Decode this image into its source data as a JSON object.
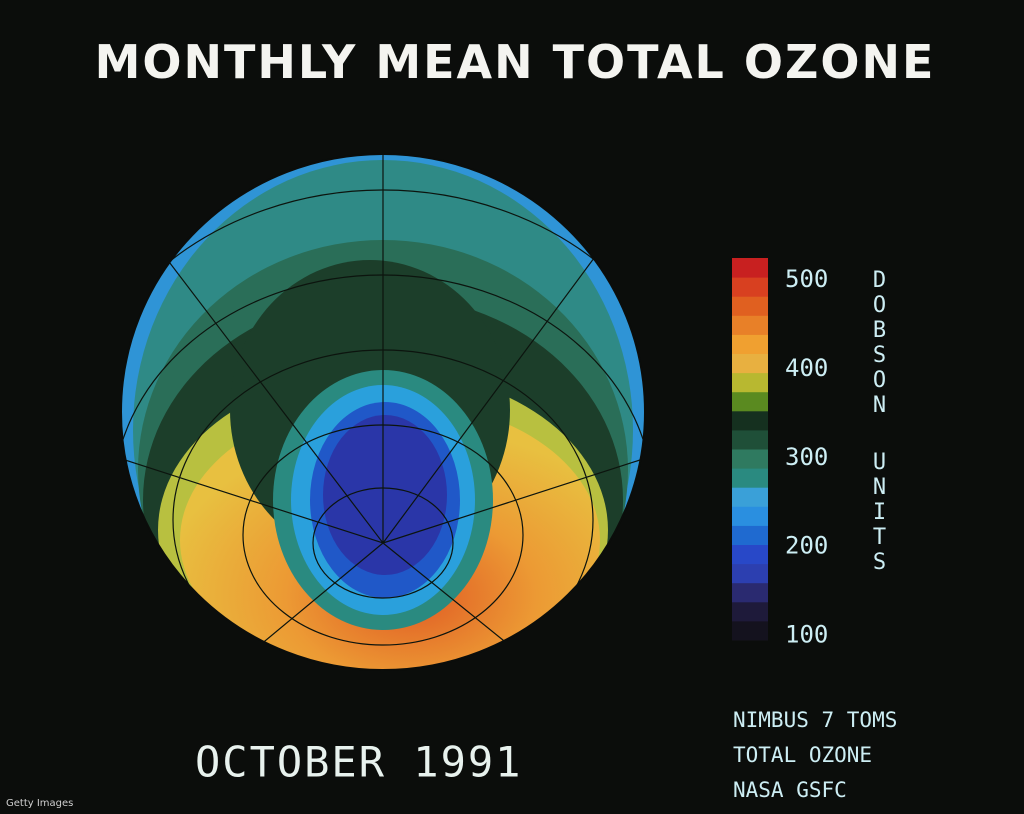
{
  "title": "MONTHLY MEAN TOTAL OZONE",
  "date": "OCTOBER 1991",
  "colorbar": {
    "label": [
      "DOBSON",
      "UNITS"
    ],
    "ticks": [
      100,
      200,
      300,
      400,
      500
    ],
    "lim": [
      95,
      525
    ],
    "colors": [
      "#14121e",
      "#1e1a3a",
      "#2a2a70",
      "#2c3fb0",
      "#2848c8",
      "#1f6ad0",
      "#2a8fe0",
      "#3aa0d8",
      "#2a8a80",
      "#2f7a60",
      "#1f4f38",
      "#15301f",
      "#5a8a20",
      "#b8b830",
      "#e8b040",
      "#f0a030",
      "#e88028",
      "#e06020",
      "#d84020",
      "#c82020"
    ]
  },
  "credits": [
    "NIMBUS 7 TOMS",
    "TOTAL OZONE",
    "NASA GSFC"
  ],
  "watermark": "Getty Images"
}
